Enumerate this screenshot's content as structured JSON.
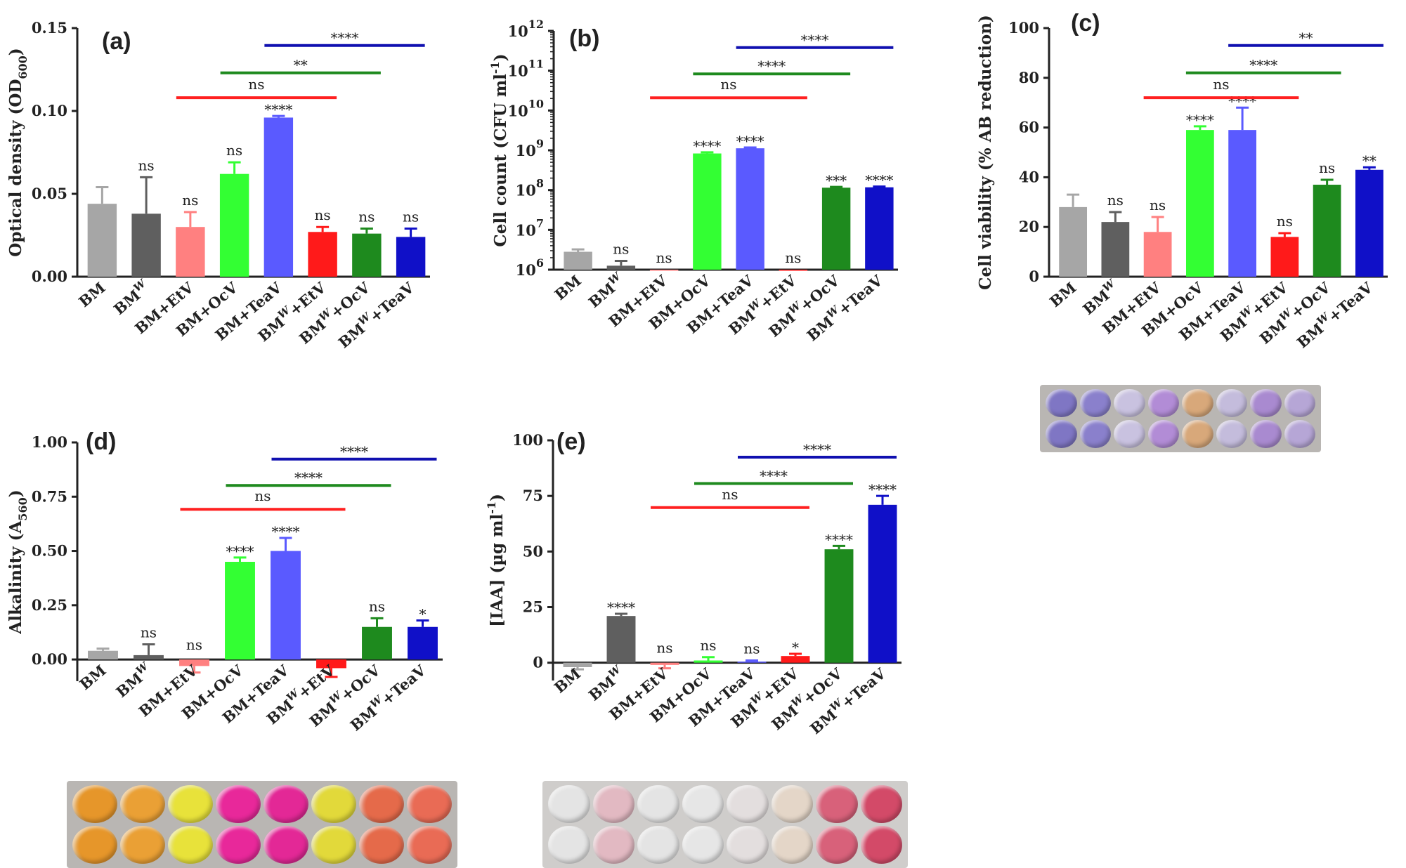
{
  "chart_data": [
    {
      "type": "bar",
      "panel": "(a)",
      "ylabel": "Optical density (OD600)",
      "ylabel_parts": [
        "Optical density (OD",
        "600",
        ")"
      ],
      "ylim": [
        0,
        0.15
      ],
      "yticks": [
        "0.00",
        "0.05",
        "0.10",
        "0.15"
      ],
      "categories": [
        "BM",
        "BMW",
        "BM+EtV",
        "BM+OcV",
        "BM+TeaV",
        "BMW+EtV",
        "BMW+OcV",
        "BMW+TeaV"
      ],
      "values": [
        0.044,
        0.038,
        0.03,
        0.062,
        0.096,
        0.027,
        0.026,
        0.024
      ],
      "errors": [
        0.01,
        0.022,
        0.009,
        0.007,
        0.001,
        0.003,
        0.003,
        0.005
      ],
      "colors": [
        "#a6a6a6",
        "#5f5f5f",
        "#ff8080",
        "#33ff33",
        "#5a5aff",
        "#ff1a1a",
        "#1e8a1e",
        "#1010c8"
      ],
      "labels": [
        "",
        "ns",
        "ns",
        "ns",
        "****",
        "ns",
        "ns",
        "ns"
      ],
      "comparisons": [
        {
          "label": "ns",
          "color": "#ff2020",
          "from": 2,
          "to": 5
        },
        {
          "label": "**",
          "color": "#1e8a1e",
          "from": 3,
          "to": 6
        },
        {
          "label": "****",
          "color": "#1010b0",
          "from": 4,
          "to": 7
        }
      ]
    },
    {
      "type": "bar",
      "panel": "(b)",
      "scale": "log",
      "ylabel": "Cell count (CFU ml-1)",
      "ylabel_parts": [
        "Cell count (CFU ml",
        "-1",
        ")"
      ],
      "ylim": [
        6,
        12
      ],
      "yticks": [
        "10",
        "10",
        "10",
        "10",
        "10",
        "10",
        "10"
      ],
      "ytick_exponents": [
        "6",
        "7",
        "8",
        "9",
        "10",
        "11",
        "12"
      ],
      "categories": [
        "BM",
        "BMW",
        "BM+EtV",
        "BM+OcV",
        "BM+TeaV",
        "BMW+EtV",
        "BMW+OcV",
        "BMW+TeaV"
      ],
      "values": [
        6.45,
        6.1,
        6.0,
        8.92,
        9.05,
        6.0,
        8.06,
        8.07
      ],
      "errors": [
        0.06,
        0.12,
        0,
        0.03,
        0.02,
        0,
        0.02,
        0.02
      ],
      "colors": [
        "#a6a6a6",
        "#5f5f5f",
        "#ff8080",
        "#33ff33",
        "#5a5aff",
        "#ff1a1a",
        "#1e8a1e",
        "#1010c8"
      ],
      "labels": [
        "",
        "ns",
        "ns",
        "****",
        "****",
        "ns",
        "***",
        "****"
      ],
      "comparisons": [
        {
          "label": "ns",
          "color": "#ff2020",
          "from": 2,
          "to": 5
        },
        {
          "label": "****",
          "color": "#1e8a1e",
          "from": 3,
          "to": 6
        },
        {
          "label": "****",
          "color": "#1010b0",
          "from": 4,
          "to": 7
        }
      ]
    },
    {
      "type": "bar",
      "panel": "(c)",
      "ylabel": "Cell viability (% AB reduction)",
      "ylabel_parts": [
        "Cell viability (% AB reduction)"
      ],
      "ylim": [
        0,
        100
      ],
      "yticks": [
        "0",
        "20",
        "40",
        "60",
        "80",
        "100"
      ],
      "categories": [
        "BM",
        "BMW",
        "BM+EtV",
        "BM+OcV",
        "BM+TeaV",
        "BMW+EtV",
        "BMW+OcV",
        "BMW+TeaV"
      ],
      "values": [
        28,
        22,
        18,
        59,
        59,
        16,
        37,
        43
      ],
      "errors": [
        5,
        4,
        6,
        1.5,
        9,
        1.5,
        2,
        1
      ],
      "colors": [
        "#a6a6a6",
        "#5f5f5f",
        "#ff8080",
        "#33ff33",
        "#5a5aff",
        "#ff1a1a",
        "#1e8a1e",
        "#1010c8"
      ],
      "labels": [
        "",
        "ns",
        "ns",
        "****",
        "****",
        "ns",
        "ns",
        "**"
      ],
      "comparisons": [
        {
          "label": "ns",
          "color": "#ff2020",
          "from": 2,
          "to": 5
        },
        {
          "label": "****",
          "color": "#1e8a1e",
          "from": 3,
          "to": 6
        },
        {
          "label": "**",
          "color": "#1010b0",
          "from": 4,
          "to": 7
        }
      ]
    },
    {
      "type": "bar",
      "panel": "(d)",
      "ylabel": "Alkalinity (A560)",
      "ylabel_parts": [
        "Alkalinity (A",
        "560",
        ")"
      ],
      "ylim": [
        -0.1,
        1.0
      ],
      "yticks": [
        "0.00",
        "0.25",
        "0.50",
        "0.75",
        "1.00"
      ],
      "categories": [
        "BM",
        "BMW",
        "BM+EtV",
        "BM+OcV",
        "BM+TeaV",
        "BMW+EtV",
        "BMW+OcV",
        "BMW+TeaV"
      ],
      "values": [
        0.04,
        0.02,
        -0.03,
        0.45,
        0.5,
        -0.04,
        0.15,
        0.15
      ],
      "errors": [
        0.01,
        0.05,
        0.03,
        0.02,
        0.06,
        0.04,
        0.04,
        0.03
      ],
      "colors": [
        "#a6a6a6",
        "#5f5f5f",
        "#ff8080",
        "#33ff33",
        "#5a5aff",
        "#ff1a1a",
        "#1e8a1e",
        "#1010c8"
      ],
      "labels": [
        "",
        "ns",
        "ns",
        "****",
        "****",
        "",
        "ns",
        "*"
      ],
      "comparisons": [
        {
          "label": "ns",
          "color": "#ff2020",
          "from": 2,
          "to": 5
        },
        {
          "label": "****",
          "color": "#1e8a1e",
          "from": 3,
          "to": 6
        },
        {
          "label": "****",
          "color": "#1010b0",
          "from": 4,
          "to": 7
        }
      ]
    },
    {
      "type": "bar",
      "panel": "(e)",
      "ylabel": "[IAA] (µg ml-1)",
      "ylabel_parts": [
        "[IAA] (µg ml",
        "-1",
        ")"
      ],
      "ylim": [
        -8,
        100
      ],
      "yticks": [
        "0",
        "25",
        "50",
        "75",
        "100"
      ],
      "categories": [
        "BM",
        "BMW",
        "BM+EtV",
        "BM+OcV",
        "BM+TeaV",
        "BMW+EtV",
        "BMW+OcV",
        "BMW+TeaV"
      ],
      "values": [
        -2,
        21,
        -1,
        1,
        0.5,
        3,
        51,
        71
      ],
      "errors": [
        1,
        1,
        1.5,
        1.5,
        0.5,
        1,
        1.5,
        4
      ],
      "colors": [
        "#a6a6a6",
        "#5f5f5f",
        "#ff8080",
        "#33ff33",
        "#5a5aff",
        "#ff1a1a",
        "#1e8a1e",
        "#1010c8"
      ],
      "labels": [
        "",
        "****",
        "ns",
        "ns",
        "ns",
        "*",
        "****",
        "****"
      ],
      "comparisons": [
        {
          "label": "ns",
          "color": "#ff2020",
          "from": 2,
          "to": 5
        },
        {
          "label": "****",
          "color": "#1e8a1e",
          "from": 3,
          "to": 6
        },
        {
          "label": "****",
          "color": "#1010b0",
          "from": 4,
          "to": 7
        }
      ]
    }
  ],
  "plates": {
    "c": {
      "top": [
        "#7f76c4",
        "#8a80cc",
        "#c9c2e0",
        "#b28cd6",
        "#d8a87a",
        "#c4bcdc",
        "#a98ad0",
        "#b6a6d6"
      ],
      "bottom": [
        "#7f76c4",
        "#8a80cc",
        "#c9c2e0",
        "#b28cd6",
        "#d8a87a",
        "#c4bcdc",
        "#a98ad0",
        "#b6a6d6"
      ]
    },
    "d": {
      "top": [
        "#e6962a",
        "#eaa035",
        "#e8e23a",
        "#e8289a",
        "#e32896",
        "#e2d93a",
        "#e56a4a",
        "#e96b55"
      ],
      "bottom": [
        "#e6962a",
        "#eaa035",
        "#e8e23a",
        "#e8289a",
        "#e32896",
        "#e2d93a",
        "#e56a4a",
        "#e96b55"
      ]
    },
    "e": {
      "top": [
        "#e4e4e4",
        "#e2b9c2",
        "#e4e4e4",
        "#e6e6e6",
        "#e3dede",
        "#e4d6c8",
        "#d8617a",
        "#d34a68"
      ],
      "bottom": [
        "#e4e4e4",
        "#e2b9c2",
        "#e4e4e4",
        "#e6e6e6",
        "#e3dede",
        "#e4d6c8",
        "#d8617a",
        "#d34a68"
      ]
    }
  }
}
